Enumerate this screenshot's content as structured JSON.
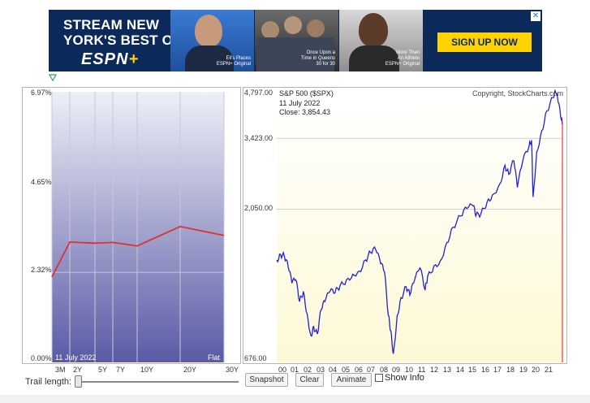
{
  "ad": {
    "headline_1": "STREAM NEW",
    "headline_2": "YORK'S BEST ON",
    "logo": "ESPN",
    "logo_plus": "+",
    "panels": [
      {
        "caption_1": "Eli's Places",
        "caption_2": "ESPN+ Original"
      },
      {
        "caption_1": "Once Upon a",
        "caption_2": "Time in Queens",
        "caption_3": "30 for 30"
      },
      {
        "caption_1": "More Than",
        "caption_2": "An Athlete",
        "caption_3": "ESPN+ Original"
      }
    ],
    "cta": "SIGN UP NOW",
    "close": "✕",
    "colors": {
      "background": "#0b2a5a",
      "cta": "#ffd200"
    }
  },
  "yield_chart": {
    "y_ticks": [
      "6.97%",
      "4.65%",
      "2.32%",
      "0.00%"
    ],
    "date": "11  July 2022",
    "shape": "Flat",
    "x_ticks": [
      "3M",
      "2Y",
      "5Y",
      "7Y",
      "10Y",
      "20Y",
      "30Y"
    ]
  },
  "sp_chart": {
    "title": "S&P 500 ($SPX)",
    "copyright": "Copyright, StockCharts.com",
    "date": "11  July 2022",
    "close": "Close: 3,854.43",
    "y_ticks": [
      "4,797.00",
      "3,423.00",
      "2,050.00",
      "676.00"
    ],
    "x_ticks": [
      "00",
      "01",
      "02",
      "03",
      "04",
      "05",
      "06",
      "07",
      "08",
      "09",
      "10",
      "11",
      "12",
      "13",
      "14",
      "15",
      "16",
      "17",
      "18",
      "19",
      "20",
      "21"
    ]
  },
  "controls": {
    "trail_label": "Trail length:",
    "snapshot": "Snapshot",
    "clear": "Clear",
    "animate": "Animate",
    "show_info": "Show Info"
  },
  "chart_data": [
    {
      "type": "line",
      "x": [
        "3M",
        "2Y",
        "5Y",
        "7Y",
        "10Y",
        "20Y",
        "30Y"
      ],
      "series": [
        {
          "values": [
            2.2,
            3.1,
            3.07,
            3.09,
            3.0,
            3.5,
            3.27
          ]
        }
      ],
      "ylim": [
        0,
        6.97
      ],
      "tick_labels": [
        "0.00%",
        "2.32%",
        "4.65%",
        "6.97%"
      ],
      "grid": true,
      "colors": {
        "line": "#e03030",
        "fill_top": "#eef0f7",
        "fill_bottom": "#5a5aa6"
      }
    },
    {
      "type": "line",
      "x": [
        2000.0,
        2000.3,
        2000.6,
        2000.9,
        2001.2,
        2001.5,
        2001.8,
        2002.1,
        2002.4,
        2002.7,
        2002.9,
        2003.2,
        2003.5,
        2003.8,
        2004.2,
        2004.6,
        2005.0,
        2005.5,
        2006.0,
        2006.5,
        2007.0,
        2007.4,
        2007.8,
        2008.2,
        2008.5,
        2008.8,
        2009.0,
        2009.2,
        2009.5,
        2009.8,
        2010.2,
        2010.5,
        2010.8,
        2011.3,
        2011.7,
        2011.9,
        2012.4,
        2012.9,
        2013.4,
        2013.9,
        2014.5,
        2015.0,
        2015.5,
        2015.7,
        2016.1,
        2016.6,
        2017.0,
        2017.6,
        2018.0,
        2018.3,
        2018.7,
        2018.98,
        2019.4,
        2019.9,
        2020.1,
        2020.22,
        2020.5,
        2020.9,
        2021.3,
        2021.8,
        2022.0,
        2022.2,
        2022.45,
        2022.53
      ],
      "series": [
        {
          "name": "S&P 500",
          "values": [
            1420,
            1480,
            1460,
            1350,
            1200,
            1230,
            1050,
            1130,
            960,
            820,
            880,
            830,
            990,
            1050,
            1130,
            1120,
            1180,
            1230,
            1280,
            1310,
            1420,
            1500,
            1530,
            1380,
            1300,
            950,
            850,
            720,
            950,
            1080,
            1170,
            1100,
            1200,
            1340,
            1140,
            1260,
            1360,
            1410,
            1610,
            1800,
            1950,
            2060,
            2100,
            1950,
            1980,
            2170,
            2270,
            2470,
            2820,
            2640,
            2910,
            2400,
            2900,
            3230,
            3380,
            2240,
            3100,
            3620,
            4180,
            4600,
            4780,
            4450,
            3900,
            3854
          ]
        }
      ],
      "ylim": [
        676,
        4797
      ],
      "y_scale": "log",
      "tick_labels": [
        "676.00",
        "2,050.00",
        "3,423.00",
        "4,797.00"
      ],
      "grid": true,
      "colors": {
        "line": "#2222cc",
        "fill_top": "#ffffff",
        "fill_bottom": "#fdf9d6",
        "marker": "#ff3030"
      }
    }
  ]
}
